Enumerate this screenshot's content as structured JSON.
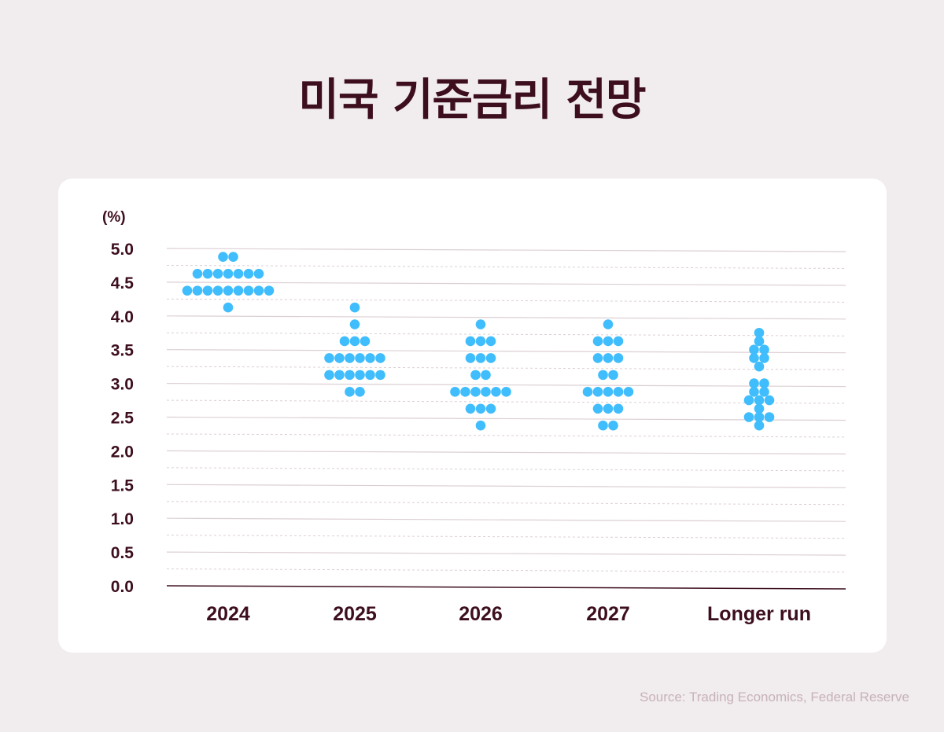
{
  "title": "미국 기준금리 전망",
  "source": "Source: Trading Economics, Federal Reserve",
  "colors": {
    "background": "#f1ecee",
    "text": "#3d0e1e",
    "dot": "#40bdfc",
    "grid": "#dccfd3"
  },
  "chart_data": {
    "type": "scatter",
    "subtype": "dot-plot",
    "ylabel": "(%)",
    "ylim": [
      0,
      5
    ],
    "yticks": [
      "0.0",
      "0.5",
      "1.0",
      "1.5",
      "2.0",
      "2.5",
      "3.0",
      "3.5",
      "4.0",
      "4.5",
      "5.0"
    ],
    "grid": true,
    "categories": [
      "2024",
      "2025",
      "2026",
      "2027",
      "Longer run"
    ],
    "points": [
      [
        {
          "y": 4.875,
          "n": 2
        },
        {
          "y": 4.625,
          "n": 7
        },
        {
          "y": 4.375,
          "n": 9
        },
        {
          "y": 4.125,
          "n": 1
        }
      ],
      [
        {
          "y": 4.125,
          "n": 1
        },
        {
          "y": 3.875,
          "n": 1
        },
        {
          "y": 3.625,
          "n": 3
        },
        {
          "y": 3.375,
          "n": 6
        },
        {
          "y": 3.125,
          "n": 6
        },
        {
          "y": 2.875,
          "n": 2
        }
      ],
      [
        {
          "y": 3.875,
          "n": 1
        },
        {
          "y": 3.625,
          "n": 3
        },
        {
          "y": 3.375,
          "n": 3
        },
        {
          "y": 3.125,
          "n": 2
        },
        {
          "y": 2.875,
          "n": 6
        },
        {
          "y": 2.625,
          "n": 3
        },
        {
          "y": 2.375,
          "n": 1
        }
      ],
      [
        {
          "y": 3.875,
          "n": 1
        },
        {
          "y": 3.625,
          "n": 3
        },
        {
          "y": 3.375,
          "n": 3
        },
        {
          "y": 3.125,
          "n": 2
        },
        {
          "y": 2.875,
          "n": 5
        },
        {
          "y": 2.625,
          "n": 3
        },
        {
          "y": 2.375,
          "n": 2
        }
      ],
      [
        {
          "y": 3.75,
          "n": 1
        },
        {
          "y": 3.625,
          "n": 1
        },
        {
          "y": 3.5,
          "n": 2
        },
        {
          "y": 3.375,
          "n": 2
        },
        {
          "y": 3.25,
          "n": 1
        },
        {
          "y": 3.0,
          "n": 2
        },
        {
          "y": 2.875,
          "n": 2
        },
        {
          "y": 2.75,
          "n": 3
        },
        {
          "y": 2.625,
          "n": 1
        },
        {
          "y": 2.5,
          "n": 3
        },
        {
          "y": 2.375,
          "n": 1
        }
      ]
    ]
  }
}
